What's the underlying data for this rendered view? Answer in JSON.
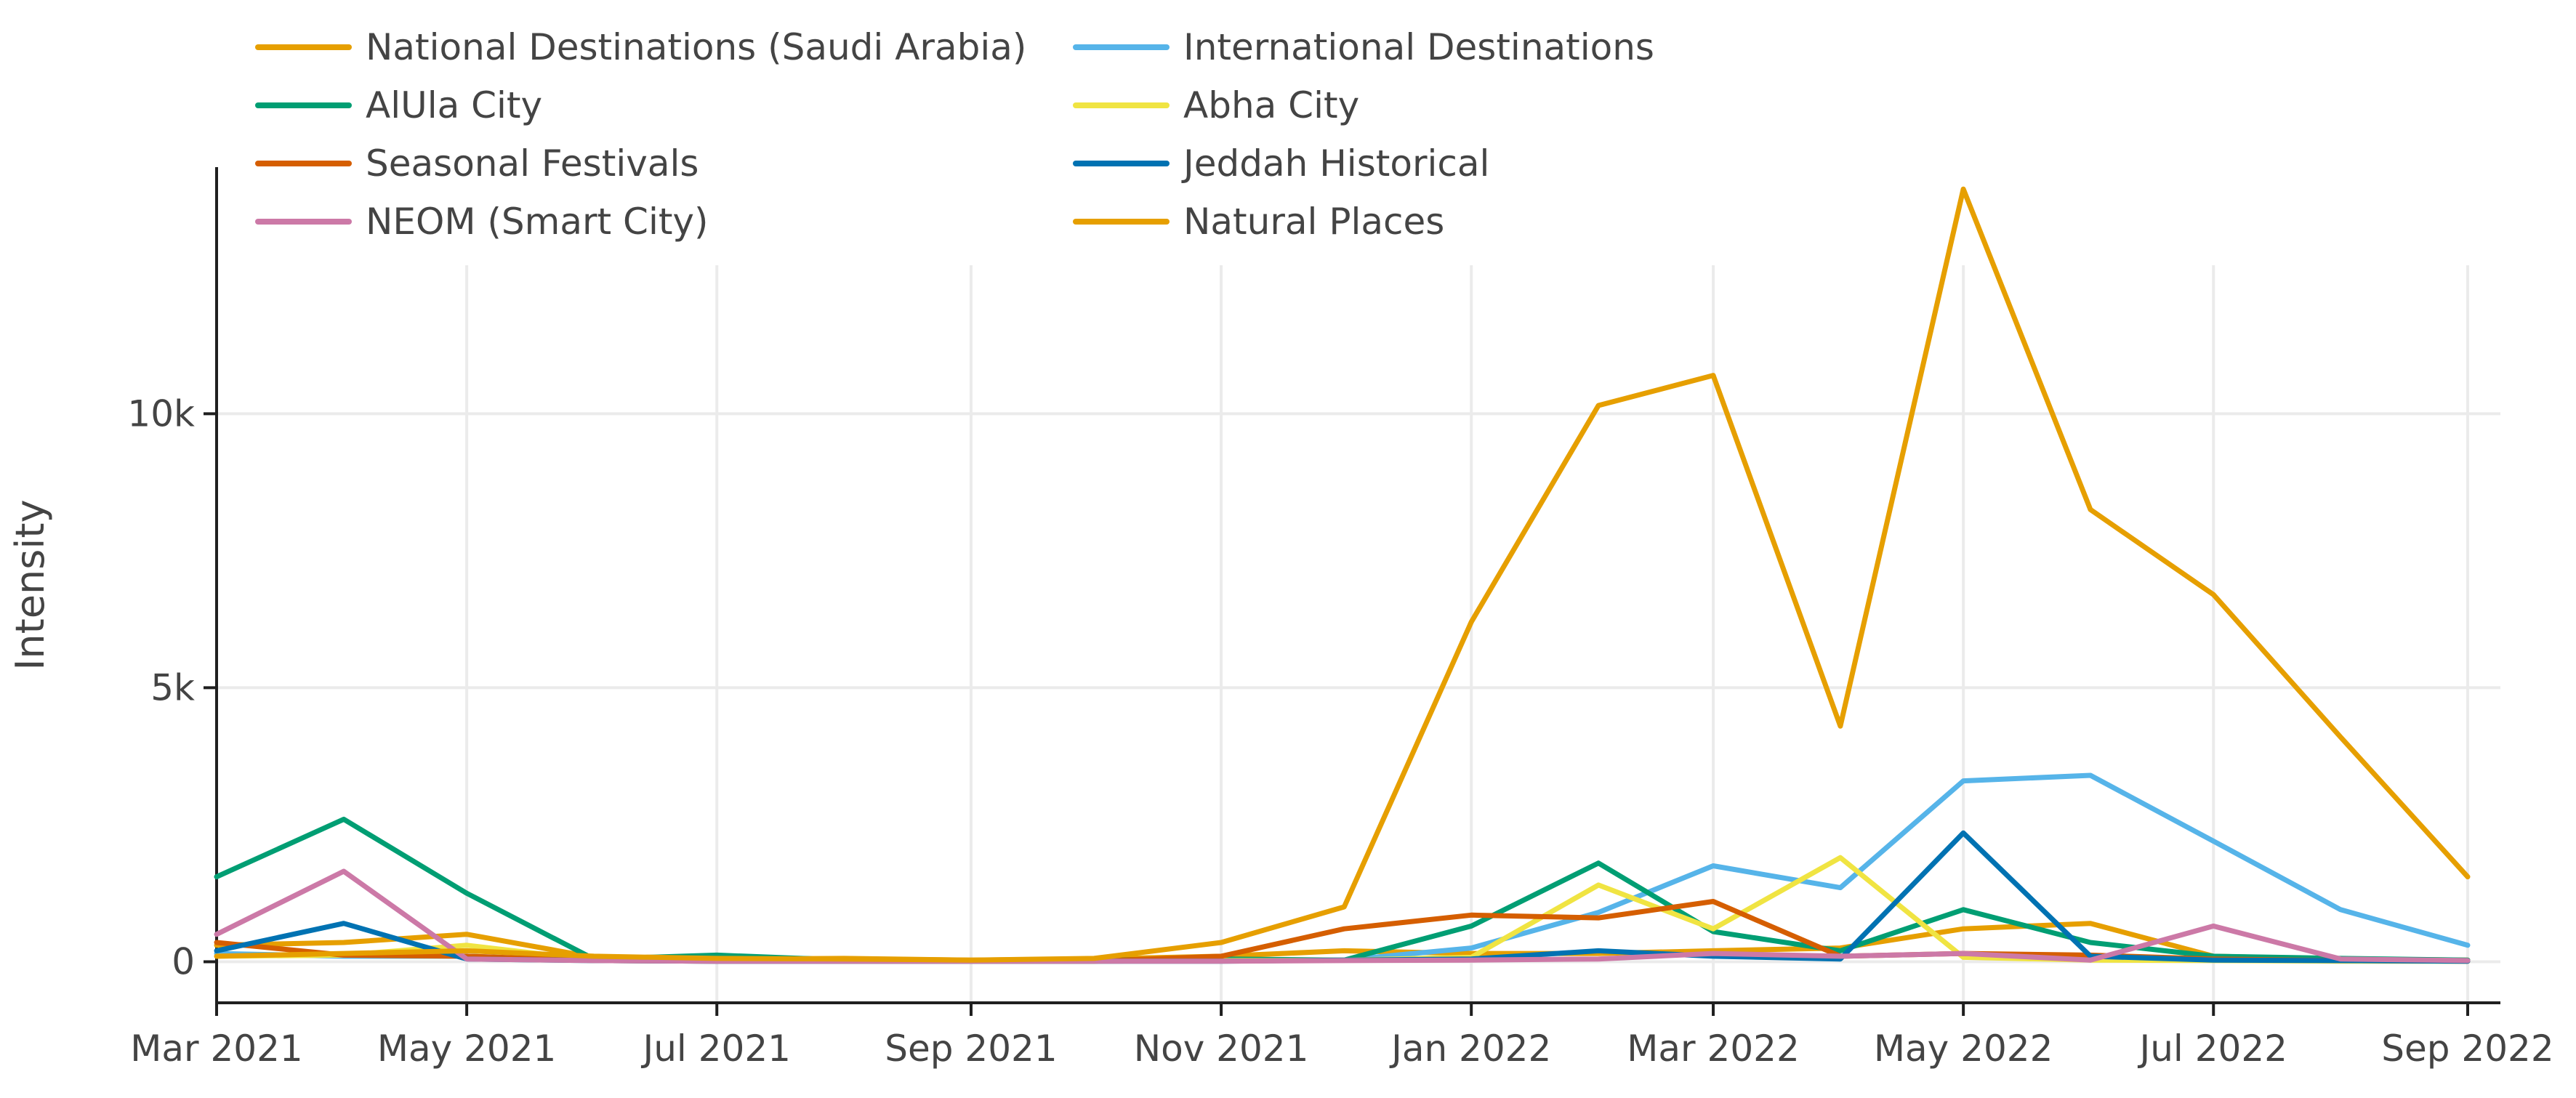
{
  "chart_data": {
    "type": "line",
    "title": "",
    "xlabel": "",
    "ylabel": "Intensity",
    "x": [
      "2021-03-01",
      "2021-04-01",
      "2021-05-01",
      "2021-06-01",
      "2021-07-01",
      "2021-08-01",
      "2021-09-01",
      "2021-10-01",
      "2021-11-01",
      "2021-12-01",
      "2022-01-01",
      "2022-02-01",
      "2022-03-01",
      "2022-04-01",
      "2022-05-01",
      "2022-06-01",
      "2022-07-01",
      "2022-08-01",
      "2022-09-01"
    ],
    "xlim": [
      "2021-03-01",
      "2022-09-01"
    ],
    "ylim": [
      -750,
      14500
    ],
    "x_ticks": [
      {
        "value": "2021-03-01",
        "label": "Mar 2021"
      },
      {
        "value": "2021-05-01",
        "label": "May 2021"
      },
      {
        "value": "2021-07-01",
        "label": "Jul 2021"
      },
      {
        "value": "2021-09-01",
        "label": "Sep 2021"
      },
      {
        "value": "2021-11-01",
        "label": "Nov 2021"
      },
      {
        "value": "2022-01-01",
        "label": "Jan 2022"
      },
      {
        "value": "2022-03-01",
        "label": "Mar 2022"
      },
      {
        "value": "2022-05-01",
        "label": "May 2022"
      },
      {
        "value": "2022-07-01",
        "label": "Jul 2022"
      },
      {
        "value": "2022-09-01",
        "label": "Sep 2022"
      }
    ],
    "y_ticks": [
      {
        "value": 0,
        "label": "0"
      },
      {
        "value": 5000,
        "label": "5k"
      },
      {
        "value": 10000,
        "label": "10k"
      }
    ],
    "grid": true,
    "legend_position": "top-left",
    "series": [
      {
        "name": "National Destinations (Saudi Arabia)",
        "color": "#E69F00",
        "points": [
          [
            "2021-03-01",
            300
          ],
          [
            "2021-04-01",
            350
          ],
          [
            "2021-05-01",
            500
          ],
          [
            "2021-06-01",
            80
          ],
          [
            "2021-07-01",
            50
          ],
          [
            "2021-08-01",
            60
          ],
          [
            "2021-09-01",
            30
          ],
          [
            "2021-10-01",
            50
          ],
          [
            "2021-11-01",
            100
          ],
          [
            "2021-12-01",
            200
          ],
          [
            "2022-01-01",
            150
          ],
          [
            "2022-02-01",
            150
          ],
          [
            "2022-03-01",
            200
          ],
          [
            "2022-04-01",
            250
          ],
          [
            "2022-05-01",
            600
          ],
          [
            "2022-06-01",
            700
          ],
          [
            "2022-07-01",
            100
          ],
          [
            "2022-08-01",
            50
          ],
          [
            "2022-09-01",
            30
          ]
        ]
      },
      {
        "name": "International Destinations",
        "color": "#56B4E9",
        "points": [
          [
            "2021-03-01",
            150
          ],
          [
            "2021-04-01",
            100
          ],
          [
            "2021-05-01",
            100
          ],
          [
            "2021-06-01",
            20
          ],
          [
            "2021-07-01",
            10
          ],
          [
            "2021-08-01",
            10
          ],
          [
            "2021-09-01",
            10
          ],
          [
            "2021-10-01",
            10
          ],
          [
            "2021-11-01",
            20
          ],
          [
            "2021-12-01",
            30
          ],
          [
            "2022-01-01",
            250
          ],
          [
            "2022-02-01",
            900
          ],
          [
            "2022-03-01",
            1750
          ],
          [
            "2022-04-01",
            1350
          ],
          [
            "2022-05-01",
            3300
          ],
          [
            "2022-06-01",
            3400
          ],
          [
            "2022-07-01",
            2200
          ],
          [
            "2022-08-01",
            950
          ],
          [
            "2022-09-01",
            300
          ]
        ]
      },
      {
        "name": "AlUla City",
        "color": "#009E73",
        "points": [
          [
            "2021-03-01",
            1550
          ],
          [
            "2021-04-01",
            2600
          ],
          [
            "2021-05-01",
            1250
          ],
          [
            "2021-06-01",
            50
          ],
          [
            "2021-07-01",
            120
          ],
          [
            "2021-08-01",
            30
          ],
          [
            "2021-09-01",
            20
          ],
          [
            "2021-10-01",
            30
          ],
          [
            "2021-11-01",
            50
          ],
          [
            "2021-12-01",
            30
          ],
          [
            "2022-01-01",
            650
          ],
          [
            "2022-02-01",
            1800
          ],
          [
            "2022-03-01",
            550
          ],
          [
            "2022-04-01",
            200
          ],
          [
            "2022-05-01",
            950
          ],
          [
            "2022-06-01",
            350
          ],
          [
            "2022-07-01",
            100
          ],
          [
            "2022-08-01",
            60
          ],
          [
            "2022-09-01",
            30
          ]
        ]
      },
      {
        "name": "Abha City",
        "color": "#F0E442",
        "points": [
          [
            "2021-03-01",
            100
          ],
          [
            "2021-04-01",
            120
          ],
          [
            "2021-05-01",
            300
          ],
          [
            "2021-06-01",
            30
          ],
          [
            "2021-07-01",
            20
          ],
          [
            "2021-08-01",
            10
          ],
          [
            "2021-09-01",
            10
          ],
          [
            "2021-10-01",
            10
          ],
          [
            "2021-11-01",
            20
          ],
          [
            "2021-12-01",
            30
          ],
          [
            "2022-01-01",
            80
          ],
          [
            "2022-02-01",
            1400
          ],
          [
            "2022-03-01",
            600
          ],
          [
            "2022-04-01",
            1900
          ],
          [
            "2022-05-01",
            80
          ],
          [
            "2022-06-01",
            30
          ],
          [
            "2022-07-01",
            20
          ],
          [
            "2022-08-01",
            10
          ],
          [
            "2022-09-01",
            10
          ]
        ]
      },
      {
        "name": "Seasonal Festivals",
        "color": "#D55E00",
        "points": [
          [
            "2021-03-01",
            350
          ],
          [
            "2021-04-01",
            120
          ],
          [
            "2021-05-01",
            100
          ],
          [
            "2021-06-01",
            20
          ],
          [
            "2021-07-01",
            10
          ],
          [
            "2021-08-01",
            10
          ],
          [
            "2021-09-01",
            10
          ],
          [
            "2021-10-01",
            10
          ],
          [
            "2021-11-01",
            100
          ],
          [
            "2021-12-01",
            600
          ],
          [
            "2022-01-01",
            850
          ],
          [
            "2022-02-01",
            800
          ],
          [
            "2022-03-01",
            1100
          ],
          [
            "2022-04-01",
            100
          ],
          [
            "2022-05-01",
            150
          ],
          [
            "2022-06-01",
            120
          ],
          [
            "2022-07-01",
            50
          ],
          [
            "2022-08-01",
            20
          ],
          [
            "2022-09-01",
            10
          ]
        ]
      },
      {
        "name": "Jeddah Historical",
        "color": "#0072B2",
        "points": [
          [
            "2021-03-01",
            200
          ],
          [
            "2021-04-01",
            700
          ],
          [
            "2021-05-01",
            50
          ],
          [
            "2021-06-01",
            20
          ],
          [
            "2021-07-01",
            10
          ],
          [
            "2021-08-01",
            10
          ],
          [
            "2021-09-01",
            10
          ],
          [
            "2021-10-01",
            10
          ],
          [
            "2021-11-01",
            10
          ],
          [
            "2021-12-01",
            30
          ],
          [
            "2022-01-01",
            50
          ],
          [
            "2022-02-01",
            200
          ],
          [
            "2022-03-01",
            100
          ],
          [
            "2022-04-01",
            50
          ],
          [
            "2022-05-01",
            2350
          ],
          [
            "2022-06-01",
            100
          ],
          [
            "2022-07-01",
            30
          ],
          [
            "2022-08-01",
            20
          ],
          [
            "2022-09-01",
            10
          ]
        ]
      },
      {
        "name": "NEOM (Smart City)",
        "color": "#CC79A7",
        "points": [
          [
            "2021-03-01",
            500
          ],
          [
            "2021-04-01",
            1650
          ],
          [
            "2021-05-01",
            50
          ],
          [
            "2021-06-01",
            20
          ],
          [
            "2021-07-01",
            10
          ],
          [
            "2021-08-01",
            10
          ],
          [
            "2021-09-01",
            10
          ],
          [
            "2021-10-01",
            10
          ],
          [
            "2021-11-01",
            10
          ],
          [
            "2021-12-01",
            20
          ],
          [
            "2022-01-01",
            30
          ],
          [
            "2022-02-01",
            50
          ],
          [
            "2022-03-01",
            150
          ],
          [
            "2022-04-01",
            100
          ],
          [
            "2022-05-01",
            150
          ],
          [
            "2022-06-01",
            30
          ],
          [
            "2022-07-01",
            650
          ],
          [
            "2022-08-01",
            50
          ],
          [
            "2022-09-01",
            20
          ]
        ]
      },
      {
        "name": "Natural Places",
        "color": "#E69F00",
        "points": [
          [
            "2021-03-01",
            100
          ],
          [
            "2021-04-01",
            150
          ],
          [
            "2021-05-01",
            200
          ],
          [
            "2021-06-01",
            100
          ],
          [
            "2021-07-01",
            60
          ],
          [
            "2021-08-01",
            50
          ],
          [
            "2021-09-01",
            30
          ],
          [
            "2021-10-01",
            60
          ],
          [
            "2021-11-01",
            350
          ],
          [
            "2021-12-01",
            1000
          ],
          [
            "2022-01-01",
            6200
          ],
          [
            "2022-02-01",
            10150
          ],
          [
            "2022-03-01",
            10700
          ],
          [
            "2022-04-01",
            4300
          ],
          [
            "2022-05-01",
            14100
          ],
          [
            "2022-06-01",
            8250
          ],
          [
            "2022-07-01",
            6700
          ],
          [
            "2022-08-01",
            4100
          ],
          [
            "2022-09-01",
            1550
          ]
        ]
      }
    ]
  }
}
